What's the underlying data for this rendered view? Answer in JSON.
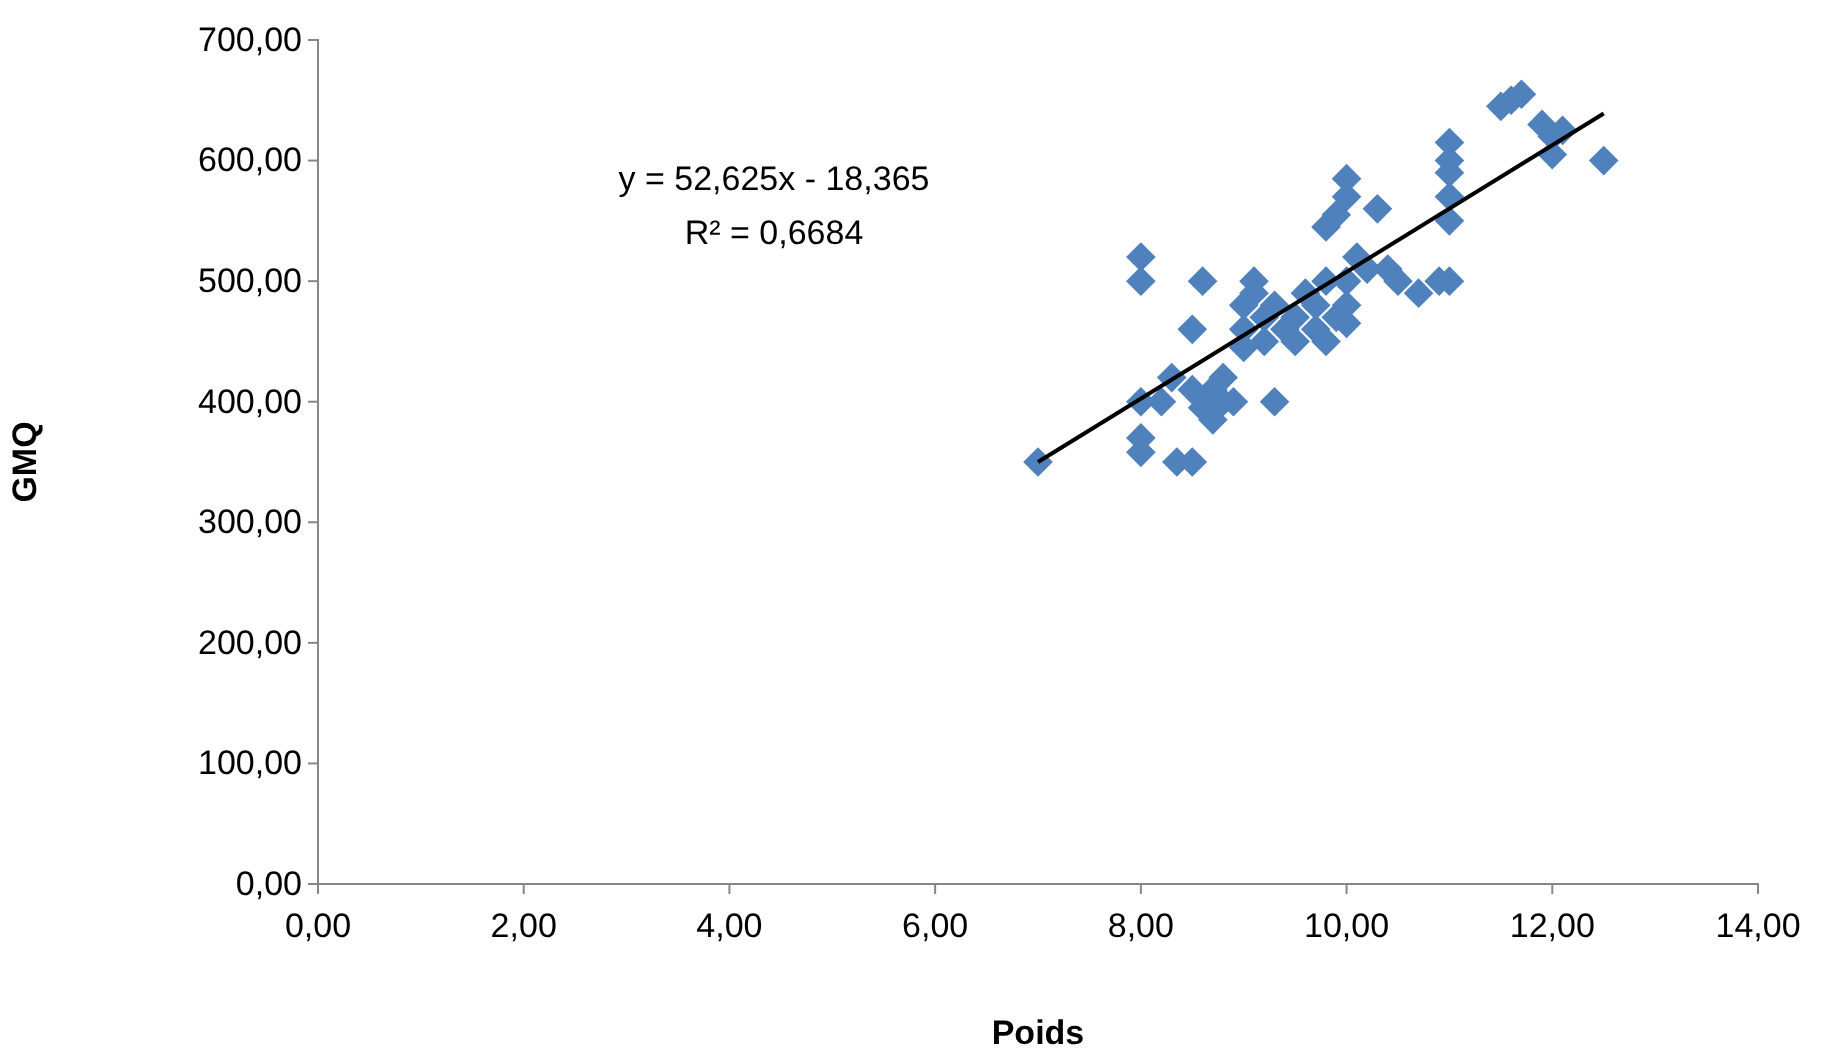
{
  "chart_data": {
    "type": "scatter",
    "xlabel": "Poids",
    "ylabel": "GMQ",
    "grid": false,
    "xlim": [
      0,
      14
    ],
    "ylim": [
      0,
      700
    ],
    "xticks": [
      {
        "value": 0,
        "label": "0,00"
      },
      {
        "value": 2,
        "label": "2,00"
      },
      {
        "value": 4,
        "label": "4,00"
      },
      {
        "value": 6,
        "label": "6,00"
      },
      {
        "value": 8,
        "label": "8,00"
      },
      {
        "value": 10,
        "label": "10,00"
      },
      {
        "value": 12,
        "label": "12,00"
      },
      {
        "value": 14,
        "label": "14,00"
      }
    ],
    "yticks": [
      {
        "value": 0,
        "label": "0,00"
      },
      {
        "value": 100,
        "label": "100,00"
      },
      {
        "value": 200,
        "label": "200,00"
      },
      {
        "value": 300,
        "label": "300,00"
      },
      {
        "value": 400,
        "label": "400,00"
      },
      {
        "value": 500,
        "label": "500,00"
      },
      {
        "value": 600,
        "label": "600,00"
      },
      {
        "value": 700,
        "label": "700,00"
      }
    ],
    "annotations": [
      "y = 52,625x - 18,365",
      "R² = 0,6684"
    ],
    "series": [
      {
        "marker": "diamond",
        "color": "#4f81bd",
        "x": [
          7,
          8,
          8,
          8,
          8,
          8,
          8.2,
          8.3,
          8.35,
          8.5,
          8.5,
          8.5,
          8.6,
          8.6,
          8.7,
          8.7,
          8.8,
          8.8,
          8.9,
          9,
          9,
          9,
          9.1,
          9.1,
          9.2,
          9.2,
          9.3,
          9.3,
          9.4,
          9.5,
          9.5,
          9.6,
          9.7,
          9.7,
          9.8,
          9.8,
          9.8,
          9.9,
          9.9,
          10,
          10,
          10,
          10,
          10,
          10.1,
          10.2,
          10.3,
          10.4,
          10.5,
          10.7,
          10.9,
          11,
          11,
          11,
          11,
          11,
          11,
          11.5,
          11.6,
          11.7,
          11.9,
          12,
          12,
          12.1,
          12.5
        ],
        "values": [
          350,
          520,
          500,
          400,
          370,
          358,
          400,
          420,
          350,
          350,
          460,
          410,
          500,
          395,
          410,
          385,
          420,
          400,
          400,
          480,
          460,
          445,
          500,
          490,
          470,
          450,
          480,
          400,
          460,
          470,
          450,
          490,
          480,
          460,
          545,
          500,
          450,
          555,
          470,
          585,
          570,
          500,
          480,
          465,
          520,
          510,
          560,
          510,
          500,
          490,
          500,
          615,
          600,
          590,
          570,
          550,
          500,
          645,
          650,
          655,
          630,
          620,
          605,
          625,
          600
        ]
      },
      {
        "type": "line",
        "marker": "none",
        "color": "#000000",
        "x": [
          7,
          12.5
        ],
        "values": [
          350,
          639
        ]
      }
    ]
  }
}
